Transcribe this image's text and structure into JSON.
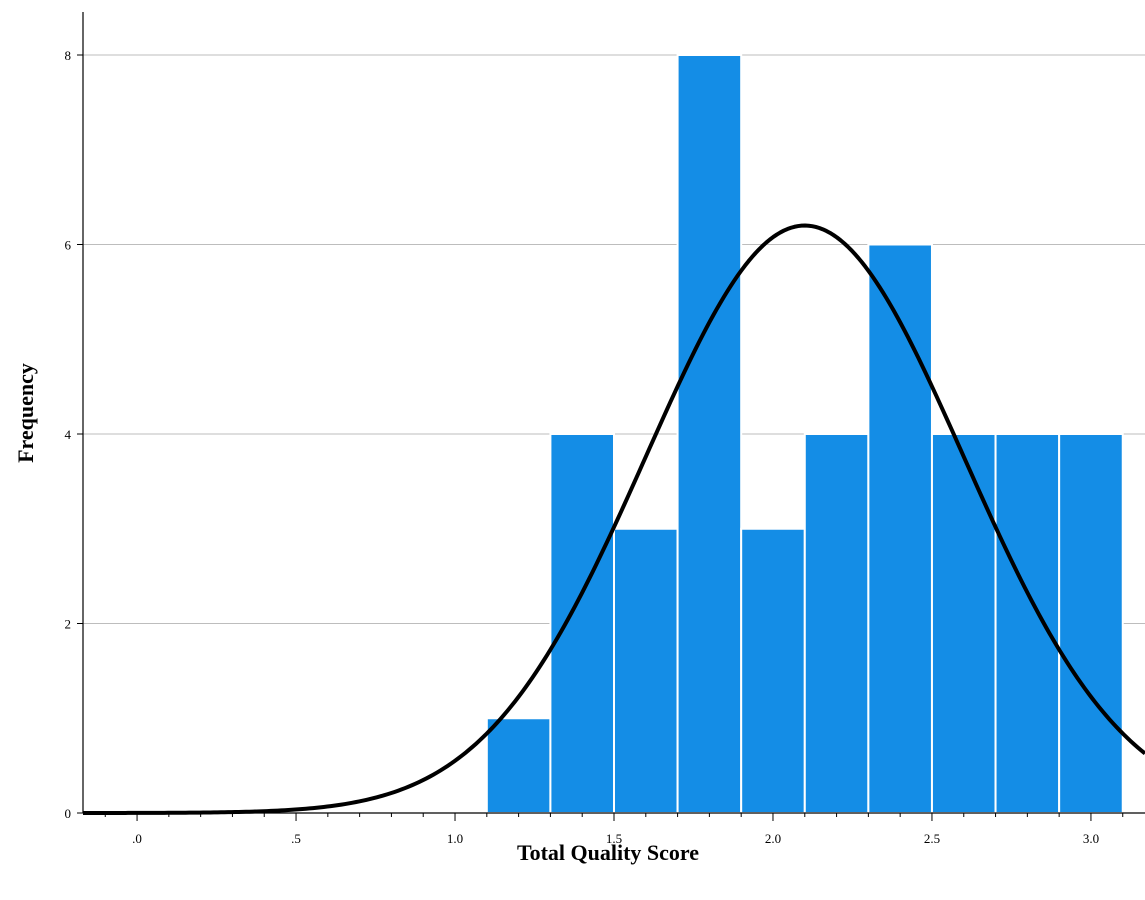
{
  "chart_data": {
    "type": "bar",
    "title": "",
    "xlabel": "Total Quality Score",
    "ylabel": "Frequency",
    "xlim": [
      -0.17,
      3.17
    ],
    "ylim": [
      0,
      8
    ],
    "x_ticks": [
      0,
      0.5,
      1.0,
      1.5,
      2.0,
      2.5,
      3.0
    ],
    "x_tick_labels": [
      ".0",
      ".5",
      "1.0",
      "1.5",
      "2.0",
      "2.5",
      "3.0"
    ],
    "y_ticks": [
      0,
      2,
      4,
      6,
      8
    ],
    "y_tick_labels": [
      "0",
      "2",
      "4",
      "6",
      "8"
    ],
    "grid": "horizontal",
    "bins": [
      {
        "start": 1.1,
        "end": 1.3,
        "value": 1
      },
      {
        "start": 1.3,
        "end": 1.5,
        "value": 4
      },
      {
        "start": 1.5,
        "end": 1.7,
        "value": 3
      },
      {
        "start": 1.7,
        "end": 1.9,
        "value": 8
      },
      {
        "start": 1.9,
        "end": 2.1,
        "value": 3
      },
      {
        "start": 2.1,
        "end": 2.3,
        "value": 4
      },
      {
        "start": 2.3,
        "end": 2.5,
        "value": 6
      },
      {
        "start": 2.5,
        "end": 2.7,
        "value": 4
      },
      {
        "start": 2.7,
        "end": 2.9,
        "value": 4
      },
      {
        "start": 2.9,
        "end": 3.1,
        "value": 4
      }
    ],
    "normal_curve": {
      "mean": 2.1,
      "peak": 6.2,
      "std_dev": 0.5
    },
    "colors": {
      "bar": "#148de6",
      "curve": "#000000",
      "grid": "#bdbdbd"
    }
  }
}
